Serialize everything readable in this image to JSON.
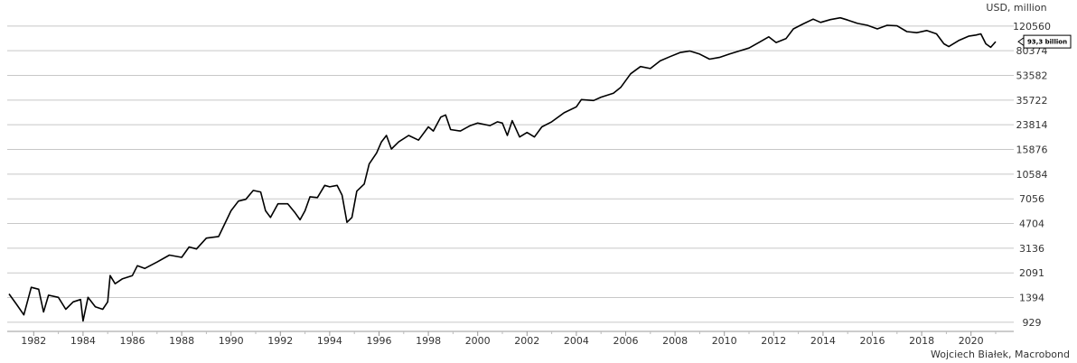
{
  "chart_data": {
    "type": "line",
    "y_label": "USD, million",
    "source": "Wojciech Białek, Macrobond",
    "annotation": "93,3 billion",
    "log_scale": true,
    "grid": true,
    "xlim": [
      1981,
      2021
    ],
    "xticks": [
      1982,
      1984,
      1986,
      1988,
      1990,
      1992,
      1994,
      1996,
      1998,
      2000,
      2002,
      2004,
      2006,
      2008,
      2010,
      2012,
      2014,
      2016,
      2018,
      2020
    ],
    "ylim": [
      800,
      148000
    ],
    "yticks": [
      929,
      1394,
      2091,
      3136,
      4704,
      7056,
      10584,
      15876,
      23814,
      35722,
      53582,
      80374,
      120560
    ],
    "series": [
      {
        "color": "#000000",
        "x": [
          1981.0,
          1981.3,
          1981.6,
          1981.9,
          1982.2,
          1982.4,
          1982.6,
          1983.0,
          1983.3,
          1983.6,
          1983.9,
          1984.0,
          1984.2,
          1984.5,
          1984.8,
          1985.0,
          1985.1,
          1985.3,
          1985.6,
          1986.0,
          1986.2,
          1986.5,
          1987.0,
          1987.5,
          1988.0,
          1988.3,
          1988.6,
          1989.0,
          1989.5,
          1990.0,
          1990.3,
          1990.6,
          1990.9,
          1991.2,
          1991.4,
          1991.6,
          1991.9,
          1992.3,
          1992.6,
          1992.8,
          1993.0,
          1993.2,
          1993.5,
          1993.8,
          1994.0,
          1994.3,
          1994.5,
          1994.7,
          1994.9,
          1995.1,
          1995.4,
          1995.6,
          1995.9,
          1996.1,
          1996.3,
          1996.5,
          1996.8,
          1997.2,
          1997.6,
          1998.0,
          1998.2,
          1998.5,
          1998.7,
          1998.9,
          1999.3,
          1999.7,
          2000.0,
          2000.5,
          2000.8,
          2001.0,
          2001.2,
          2001.4,
          2001.7,
          2002.0,
          2002.3,
          2002.6,
          2003.0,
          2003.5,
          2004.0,
          2004.2,
          2004.7,
          2005.0,
          2005.5,
          2005.8,
          2006.2,
          2006.6,
          2007.0,
          2007.4,
          2007.8,
          2008.2,
          2008.6,
          2009.0,
          2009.4,
          2009.8,
          2010.2,
          2010.6,
          2011.0,
          2011.4,
          2011.8,
          2012.1,
          2012.5,
          2012.8,
          2013.2,
          2013.6,
          2013.9,
          2014.3,
          2014.7,
          2015.0,
          2015.4,
          2015.8,
          2016.2,
          2016.6,
          2017.0,
          2017.4,
          2017.8,
          2018.2,
          2018.6,
          2018.9,
          2019.1,
          2019.5,
          2019.9,
          2020.2,
          2020.4,
          2020.6,
          2020.8,
          2021.0
        ],
        "values": [
          1480,
          1250,
          1050,
          1650,
          1600,
          1100,
          1450,
          1400,
          1150,
          1300,
          1350,
          950,
          1400,
          1200,
          1150,
          1300,
          2000,
          1750,
          1900,
          2000,
          2350,
          2250,
          2500,
          2800,
          2700,
          3200,
          3100,
          3700,
          3800,
          5800,
          6800,
          7000,
          8100,
          7900,
          5800,
          5200,
          6500,
          6500,
          5600,
          5000,
          5800,
          7300,
          7200,
          8800,
          8600,
          8800,
          7500,
          4800,
          5200,
          8000,
          9000,
          12500,
          15000,
          18000,
          20000,
          16000,
          18000,
          20000,
          18500,
          23000,
          21500,
          27000,
          28000,
          22000,
          21500,
          23500,
          24500,
          23500,
          25000,
          24500,
          20000,
          25500,
          19500,
          21000,
          19500,
          23000,
          25000,
          29000,
          32000,
          36000,
          35500,
          37500,
          40000,
          44000,
          55000,
          62000,
          60000,
          68000,
          73000,
          78000,
          80000,
          76000,
          70000,
          72000,
          76000,
          80000,
          84000,
          92000,
          101000,
          92000,
          98000,
          115000,
          125000,
          135000,
          128000,
          134000,
          138000,
          133000,
          126000,
          122000,
          115000,
          122000,
          121000,
          110000,
          108000,
          112000,
          106000,
          90000,
          86000,
          95000,
          102000,
          104000,
          106000,
          90000,
          85000,
          93300
        ]
      }
    ]
  }
}
